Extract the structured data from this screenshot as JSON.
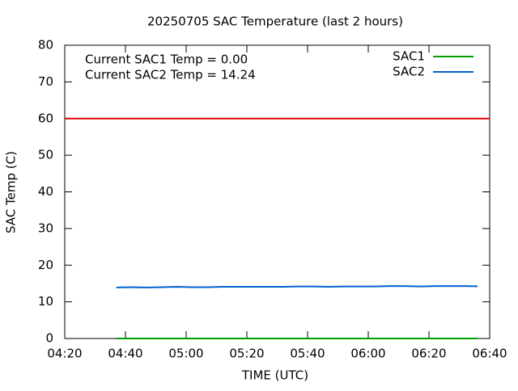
{
  "chart_data": {
    "type": "line",
    "title": "20250705 SAC Temperature (last 2 hours)",
    "xlabel": "TIME (UTC)",
    "ylabel": "SAC Temp (C)",
    "annotations": [
      "Current SAC1 Temp = 0.00",
      "Current SAC2 Temp = 14.24"
    ],
    "x": [
      "04:37",
      "04:42",
      "04:47",
      "04:52",
      "04:57",
      "05:02",
      "05:07",
      "05:12",
      "05:17",
      "05:22",
      "05:27",
      "05:32",
      "05:37",
      "05:42",
      "05:47",
      "05:52",
      "05:57",
      "06:02",
      "06:07",
      "06:12",
      "06:17",
      "06:22",
      "06:27",
      "06:32",
      "06:36"
    ],
    "series": [
      {
        "name": "SAC1",
        "color": "#00a000",
        "values": [
          0,
          0,
          0,
          0,
          0,
          0,
          0,
          0,
          0,
          0,
          0,
          0,
          0,
          0,
          0,
          0,
          0,
          0,
          0,
          0,
          0,
          0,
          0,
          0,
          0
        ]
      },
      {
        "name": "SAC2",
        "color": "#0060d0",
        "values": [
          13.9,
          14.0,
          13.9,
          14.0,
          14.1,
          14.0,
          14.0,
          14.1,
          14.1,
          14.1,
          14.1,
          14.1,
          14.2,
          14.2,
          14.1,
          14.2,
          14.2,
          14.2,
          14.3,
          14.3,
          14.2,
          14.3,
          14.3,
          14.3,
          14.24
        ]
      }
    ],
    "threshold": {
      "value": 60,
      "color": "#e00000"
    },
    "xlim": [
      "04:20",
      "06:40"
    ],
    "xticks": [
      "04:20",
      "04:40",
      "05:00",
      "05:20",
      "05:40",
      "06:00",
      "06:20",
      "06:40"
    ],
    "ylim": [
      0,
      80
    ],
    "yticks": [
      0,
      10,
      20,
      30,
      40,
      50,
      60,
      70,
      80
    ],
    "legend": "top-right"
  }
}
